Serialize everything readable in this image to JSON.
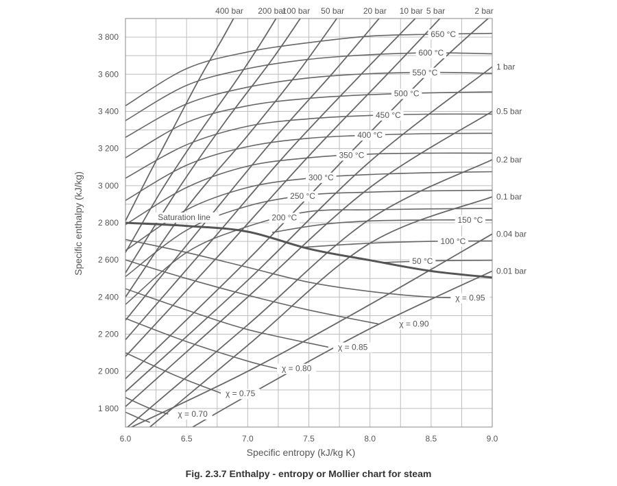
{
  "caption": "Fig. 2.3.7 Enthalpy - entropy or Mollier chart for steam",
  "colors": {
    "grid": "#bdbdbd",
    "curve": "#666666",
    "saturation": "#555555",
    "text": "#555555"
  },
  "chart_data": {
    "type": "line",
    "xlabel": "Specific entropy (kJ/kg K)",
    "ylabel": "Specific enthalpy (kJ/kg)",
    "xlim": [
      6.0,
      9.0
    ],
    "ylim": [
      1700,
      3900
    ],
    "x_ticks": [
      6.0,
      6.5,
      7.0,
      7.5,
      8.0,
      8.5,
      9.0
    ],
    "x_tick_labels": [
      "6.0",
      "6.5",
      "7.0",
      "7.5",
      "8.0",
      "8.5",
      "9.0"
    ],
    "y_ticks": [
      1800,
      2000,
      2200,
      2400,
      2600,
      2800,
      3000,
      3200,
      3400,
      3600,
      3800
    ],
    "y_tick_labels": [
      "1 800",
      "2 000",
      "2 200",
      "2 400",
      "2 600",
      "2 800",
      "3 000",
      "3 200",
      "3 400",
      "3 600",
      "3 800"
    ],
    "x_minor_step": 0.25,
    "y_minor_step": 100,
    "grid": true,
    "saturation_line": {
      "label": "Saturation line",
      "points": [
        [
          6.0,
          2800
        ],
        [
          6.5,
          2783
        ],
        [
          7.0,
          2752
        ],
        [
          7.5,
          2660
        ],
        [
          8.0,
          2598
        ],
        [
          8.5,
          2540
        ],
        [
          9.0,
          2505
        ]
      ]
    },
    "isobars": [
      {
        "label": "400 bar",
        "points": [
          [
            6.0,
            2810
          ],
          [
            6.2,
            3070
          ],
          [
            6.4,
            3320
          ],
          [
            6.6,
            3570
          ],
          [
            6.8,
            3800
          ],
          [
            6.95,
            3980
          ]
        ]
      },
      {
        "label": "200 bar",
        "points": [
          [
            6.0,
            2640
          ],
          [
            6.3,
            2980
          ],
          [
            6.6,
            3280
          ],
          [
            6.9,
            3560
          ],
          [
            7.1,
            3760
          ],
          [
            7.25,
            3920
          ]
        ]
      },
      {
        "label": "100 bar",
        "points": [
          [
            6.0,
            2530
          ],
          [
            6.4,
            2950
          ],
          [
            6.8,
            3330
          ],
          [
            7.2,
            3680
          ],
          [
            7.45,
            3920
          ]
        ]
      },
      {
        "label": "50 bar",
        "points": [
          [
            6.0,
            2400
          ],
          [
            6.5,
            2880
          ],
          [
            7.0,
            3270
          ],
          [
            7.4,
            3600
          ],
          [
            7.75,
            3920
          ]
        ]
      },
      {
        "label": "20 bar",
        "points": [
          [
            6.0,
            2275
          ],
          [
            6.6,
            2760
          ],
          [
            7.2,
            3240
          ],
          [
            7.7,
            3610
          ],
          [
            8.1,
            3920
          ]
        ]
      },
      {
        "label": "10 bar",
        "points": [
          [
            6.0,
            2170
          ],
          [
            6.7,
            2700
          ],
          [
            7.3,
            3160
          ],
          [
            7.9,
            3580
          ],
          [
            8.4,
            3920
          ]
        ]
      },
      {
        "label": "5 bar",
        "points": [
          [
            6.0,
            2080
          ],
          [
            6.8,
            2650
          ],
          [
            7.5,
            3160
          ],
          [
            8.2,
            3640
          ],
          [
            8.6,
            3920
          ]
        ]
      },
      {
        "label": "2 bar",
        "points": [
          [
            6.0,
            1960
          ],
          [
            7.0,
            2600
          ],
          [
            7.8,
            3150
          ],
          [
            8.5,
            3620
          ],
          [
            9.0,
            3920
          ]
        ]
      },
      {
        "label": "1 bar",
        "points": [
          [
            6.0,
            1890
          ],
          [
            7.0,
            2490
          ],
          [
            8.0,
            3130
          ],
          [
            9.0,
            3640
          ]
        ]
      },
      {
        "label": "0.5 bar",
        "points": [
          [
            6.0,
            1810
          ],
          [
            7.0,
            2400
          ],
          [
            8.0,
            2990
          ],
          [
            9.0,
            3400
          ]
        ]
      },
      {
        "label": "0.2 bar",
        "points": [
          [
            6.0,
            1690
          ],
          [
            7.0,
            2250
          ],
          [
            8.0,
            2820
          ],
          [
            9.0,
            3140
          ]
        ]
      },
      {
        "label": "0.1 bar",
        "points": [
          [
            6.0,
            1590
          ],
          [
            7.0,
            2140
          ],
          [
            8.0,
            2690
          ],
          [
            9.0,
            2940
          ]
        ]
      },
      {
        "label": "0.04 bar",
        "points": [
          [
            6.05,
            1700
          ],
          [
            7.0,
            2000
          ],
          [
            8.0,
            2360
          ],
          [
            9.0,
            2740
          ]
        ]
      },
      {
        "label": "0.01 bar",
        "points": [
          [
            6.55,
            1700
          ],
          [
            7.0,
            1870
          ],
          [
            8.0,
            2230
          ],
          [
            9.0,
            2540
          ]
        ]
      }
    ],
    "isotherms": [
      {
        "label": "650 °C",
        "label_at": 8.6,
        "points": [
          [
            6.0,
            3430
          ],
          [
            6.5,
            3630
          ],
          [
            7.0,
            3720
          ],
          [
            7.5,
            3770
          ],
          [
            8.0,
            3805
          ],
          [
            8.5,
            3815
          ],
          [
            9.0,
            3820
          ]
        ]
      },
      {
        "label": "600 °C",
        "label_at": 8.5,
        "points": [
          [
            6.0,
            3350
          ],
          [
            6.5,
            3540
          ],
          [
            7.0,
            3630
          ],
          [
            7.5,
            3680
          ],
          [
            8.0,
            3705
          ],
          [
            8.5,
            3715
          ],
          [
            9.0,
            3710
          ]
        ]
      },
      {
        "label": "550 °C",
        "label_at": 8.45,
        "points": [
          [
            6.0,
            3260
          ],
          [
            6.5,
            3440
          ],
          [
            7.0,
            3530
          ],
          [
            7.5,
            3580
          ],
          [
            8.0,
            3603
          ],
          [
            8.5,
            3610
          ],
          [
            9.0,
            3605
          ]
        ]
      },
      {
        "label": "500 °C",
        "label_at": 8.3,
        "points": [
          [
            6.0,
            3150
          ],
          [
            6.5,
            3340
          ],
          [
            7.0,
            3430
          ],
          [
            7.5,
            3470
          ],
          [
            8.0,
            3490
          ],
          [
            8.5,
            3500
          ],
          [
            9.0,
            3505
          ]
        ]
      },
      {
        "label": "450 °C",
        "label_at": 8.15,
        "points": [
          [
            6.0,
            3040
          ],
          [
            6.5,
            3220
          ],
          [
            7.0,
            3320
          ],
          [
            7.5,
            3360
          ],
          [
            8.0,
            3378
          ],
          [
            8.5,
            3385
          ],
          [
            9.0,
            3385
          ]
        ]
      },
      {
        "label": "400 °C",
        "label_at": 8.0,
        "points": [
          [
            6.0,
            2920
          ],
          [
            6.5,
            3110
          ],
          [
            7.0,
            3210
          ],
          [
            7.5,
            3255
          ],
          [
            8.0,
            3272
          ],
          [
            8.5,
            3280
          ],
          [
            9.0,
            3282
          ]
        ]
      },
      {
        "label": "350 °C",
        "label_at": 7.85,
        "points": [
          [
            6.0,
            2790
          ],
          [
            6.5,
            2990
          ],
          [
            7.0,
            3105
          ],
          [
            7.5,
            3150
          ],
          [
            8.0,
            3170
          ],
          [
            8.5,
            3175
          ],
          [
            9.0,
            3175
          ]
        ]
      },
      {
        "label": "300 °C",
        "label_at": 7.6,
        "points": [
          [
            6.0,
            2650
          ],
          [
            6.5,
            2870
          ],
          [
            7.0,
            2990
          ],
          [
            7.5,
            3040
          ],
          [
            8.0,
            3060
          ],
          [
            8.5,
            3070
          ],
          [
            9.0,
            3075
          ]
        ]
      },
      {
        "label": "250 °C",
        "label_at": 7.45,
        "points": [
          [
            6.0,
            2510
          ],
          [
            6.5,
            2760
          ],
          [
            7.0,
            2890
          ],
          [
            7.5,
            2950
          ],
          [
            8.0,
            2965
          ],
          [
            8.5,
            2972
          ],
          [
            9.0,
            2975
          ]
        ]
      },
      {
        "label": "200 °C",
        "label_at": 7.3,
        "points": [
          [
            6.0,
            2360
          ],
          [
            6.5,
            2640
          ],
          [
            7.0,
            2780
          ],
          [
            7.5,
            2860
          ],
          [
            8.0,
            2870
          ],
          [
            8.5,
            2875
          ],
          [
            9.0,
            2877
          ]
        ]
      },
      {
        "label": "150 °C",
        "label_at": 8.82,
        "points": [
          [
            7.2,
            2748
          ],
          [
            7.6,
            2790
          ],
          [
            8.0,
            2810
          ],
          [
            8.5,
            2815
          ],
          [
            9.0,
            2815
          ]
        ]
      },
      {
        "label": "100 °C",
        "label_at": 8.68,
        "points": [
          [
            7.45,
            2668
          ],
          [
            8.0,
            2690
          ],
          [
            8.5,
            2700
          ],
          [
            9.0,
            2702
          ]
        ]
      },
      {
        "label": "50 °C",
        "label_at": 8.43,
        "points": [
          [
            8.1,
            2586
          ],
          [
            8.5,
            2595
          ],
          [
            9.0,
            2598
          ]
        ]
      }
    ],
    "quality_lines": [
      {
        "label": "χ = 0.95",
        "label_at": 8.82,
        "points": [
          [
            6.0,
            2710
          ],
          [
            6.5,
            2640
          ],
          [
            7.0,
            2560
          ],
          [
            7.5,
            2480
          ],
          [
            8.0,
            2430
          ],
          [
            8.5,
            2400
          ],
          [
            8.9,
            2395
          ]
        ]
      },
      {
        "label": "χ = 0.90",
        "label_at": 8.36,
        "points": [
          [
            6.0,
            2600
          ],
          [
            6.5,
            2500
          ],
          [
            7.0,
            2410
          ],
          [
            7.5,
            2330
          ],
          [
            8.07,
            2255
          ]
        ]
      },
      {
        "label": "χ = 0.85",
        "label_at": 7.86,
        "points": [
          [
            6.0,
            2445
          ],
          [
            6.5,
            2330
          ],
          [
            7.0,
            2225
          ],
          [
            7.66,
            2130
          ]
        ]
      },
      {
        "label": "χ = 0.80",
        "label_at": 7.4,
        "points": [
          [
            6.0,
            2285
          ],
          [
            6.5,
            2160
          ],
          [
            7.0,
            2055
          ],
          [
            7.24,
            2015
          ]
        ]
      },
      {
        "label": "χ = 0.75",
        "label_at": 6.94,
        "points": [
          [
            6.0,
            2100
          ],
          [
            6.4,
            1980
          ],
          [
            6.79,
            1880
          ]
        ]
      },
      {
        "label": "χ = 0.70",
        "label_at": 6.55,
        "points": [
          [
            6.0,
            1860
          ],
          [
            6.2,
            1800
          ],
          [
            6.35,
            1770
          ]
        ]
      },
      {
        "label": "",
        "label_at": null,
        "points": [
          [
            6.0,
            1780
          ],
          [
            6.12,
            1745
          ],
          [
            6.2,
            1725
          ]
        ]
      }
    ]
  }
}
